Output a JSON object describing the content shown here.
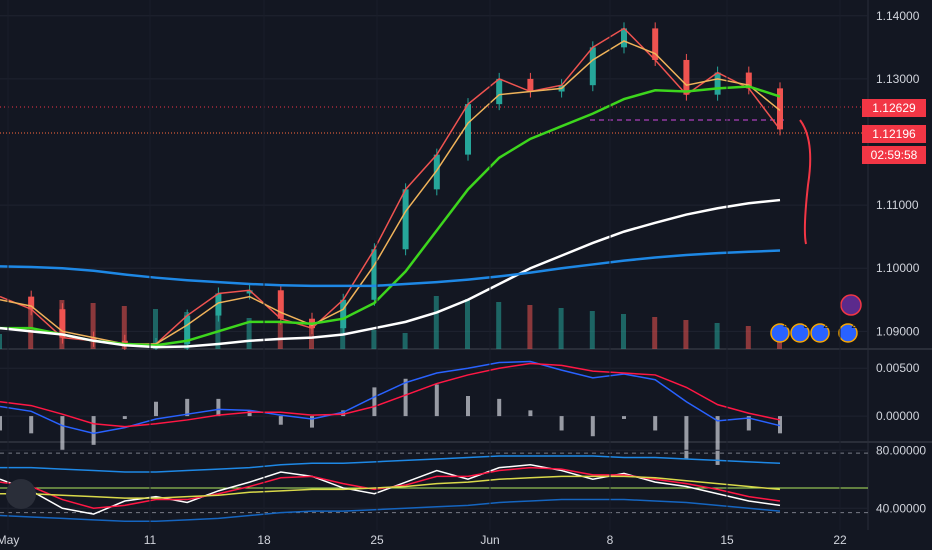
{
  "chart_data": [
    {
      "type": "line",
      "panel": "price",
      "x_ticks": [
        "May",
        "11",
        "18",
        "25",
        "Jun",
        "8",
        "15",
        "22"
      ],
      "y_ticks": [
        "1.14000",
        "1.13000",
        "1.11000",
        "1.10000",
        "1.09000"
      ],
      "price_tags": {
        "current": "1.12629",
        "last": "1.12196",
        "countdown": "02:59:58"
      },
      "ylim": [
        1.0872,
        1.1425
      ],
      "x": [
        0,
        2,
        4,
        6,
        8,
        10,
        12,
        14,
        16,
        18,
        20,
        22,
        24,
        26,
        28,
        30,
        32,
        34,
        36,
        38,
        40,
        42,
        44,
        46,
        48,
        50
      ],
      "series": [
        {
          "color": "#ef5350",
          "values": [
            1.0955,
            1.0935,
            1.089,
            1.0885,
            1.088,
            1.088,
            1.0925,
            1.096,
            1.0965,
            1.092,
            1.0905,
            1.095,
            1.103,
            1.1125,
            1.118,
            1.126,
            1.13,
            1.128,
            1.129,
            1.135,
            1.138,
            1.133,
            1.1275,
            1.131,
            1.1285,
            1.122
          ]
        },
        {
          "color": "#f0b35a",
          "values": [
            1.095,
            1.094,
            1.09,
            1.089,
            1.088,
            1.088,
            1.091,
            1.0945,
            1.0955,
            1.093,
            1.091,
            1.0935,
            1.1005,
            1.109,
            1.1155,
            1.123,
            1.1275,
            1.128,
            1.1285,
            1.133,
            1.136,
            1.134,
            1.129,
            1.13,
            1.129,
            1.125
          ]
        },
        {
          "color": "#3dd61d",
          "values": [
            1.0905,
            1.0905,
            1.0895,
            1.0885,
            1.088,
            1.0878,
            1.0885,
            1.09,
            1.0915,
            1.0915,
            1.0912,
            1.092,
            1.0945,
            1.0995,
            1.106,
            1.1125,
            1.1175,
            1.1205,
            1.1225,
            1.1245,
            1.1268,
            1.1282,
            1.128,
            1.1285,
            1.1288,
            1.1272
          ]
        },
        {
          "color": "#ffffff",
          "values": [
            1.0905,
            1.09,
            1.0895,
            1.0885,
            1.0878,
            1.0875,
            1.0876,
            1.088,
            1.0885,
            1.0888,
            1.089,
            1.0895,
            1.0905,
            1.0915,
            1.093,
            1.095,
            1.0975,
            1.1,
            1.102,
            1.104,
            1.1058,
            1.1072,
            1.1085,
            1.1095,
            1.1103,
            1.1108
          ]
        },
        {
          "color": "#1e88e5",
          "values": [
            1.1003,
            1.1002,
            1.1,
            1.0996,
            1.099,
            1.0985,
            1.0981,
            1.0978,
            1.0975,
            1.0973,
            1.0972,
            1.0972,
            1.0972,
            1.0975,
            1.0978,
            1.0982,
            1.0987,
            1.0993,
            1.1,
            1.1006,
            1.1012,
            1.1017,
            1.1021,
            1.1024,
            1.1026,
            1.1028
          ]
        }
      ]
    },
    {
      "type": "line",
      "panel": "macd",
      "y_ticks": [
        "0.00500",
        "0.00000"
      ],
      "ylim": [
        -0.0026,
        0.0068
      ],
      "x": [
        0,
        2,
        4,
        6,
        8,
        10,
        12,
        14,
        16,
        18,
        20,
        22,
        24,
        26,
        28,
        30,
        32,
        34,
        36,
        38,
        40,
        42,
        44,
        46,
        48,
        50
      ],
      "series": [
        {
          "color": "#2962ff",
          "values": [
            0.001,
            0.0005,
            -0.001,
            -0.0018,
            -0.0012,
            -0.0003,
            0.0002,
            0.0007,
            0.0006,
            0.0001,
            -0.0003,
            0.0004,
            0.002,
            0.0035,
            0.0045,
            0.005,
            0.0056,
            0.0057,
            0.0048,
            0.004,
            0.0044,
            0.0038,
            0.0015,
            -0.0005,
            -0.0002,
            -0.001
          ]
        },
        {
          "color": "#ff1744",
          "values": [
            0.0015,
            0.0011,
            0.0002,
            -0.0008,
            -0.0011,
            -0.0008,
            -0.0004,
            0.0001,
            0.0004,
            0.0004,
            0.0001,
            0.0002,
            0.001,
            0.0022,
            0.0034,
            0.0043,
            0.005,
            0.0055,
            0.0053,
            0.0047,
            0.0045,
            0.0043,
            0.003,
            0.0012,
            0.0003,
            -0.0004
          ]
        }
      ]
    },
    {
      "type": "line",
      "panel": "rsi",
      "y_ticks": [
        "80.00000",
        "40.00000"
      ],
      "ylim": [
        25,
        85
      ],
      "x": [
        0,
        2,
        4,
        6,
        8,
        10,
        12,
        14,
        16,
        18,
        20,
        22,
        24,
        26,
        28,
        30,
        32,
        34,
        36,
        38,
        40,
        42,
        44,
        46,
        48,
        50
      ],
      "series": [
        {
          "color": "#ffffff",
          "values": [
            60,
            52,
            40,
            36,
            45,
            48,
            44,
            52,
            58,
            65,
            62,
            54,
            50,
            58,
            66,
            60,
            68,
            70,
            66,
            60,
            64,
            58,
            55,
            50,
            45,
            42
          ]
        },
        {
          "color": "#ff1744",
          "values": [
            58,
            55,
            46,
            40,
            42,
            46,
            46,
            50,
            55,
            61,
            62,
            57,
            53,
            56,
            62,
            62,
            66,
            68,
            67,
            63,
            63,
            60,
            57,
            53,
            48,
            45
          ]
        },
        {
          "color": "#d9d94a",
          "values": [
            50,
            50,
            49,
            48,
            47,
            47,
            48,
            49,
            51,
            52,
            53,
            53,
            54,
            55,
            57,
            58,
            60,
            61,
            62,
            62,
            62,
            61,
            59,
            57,
            55,
            53
          ]
        },
        {
          "color": "#1e88e5",
          "values": [
            68,
            68,
            67,
            66,
            65,
            65,
            66,
            67,
            68,
            70,
            71,
            71,
            72,
            73,
            74,
            75,
            76,
            76,
            76,
            76,
            75,
            75,
            74,
            73,
            72,
            71
          ]
        },
        {
          "color": "#1565c0",
          "values": [
            35,
            34,
            33,
            32,
            31,
            31,
            32,
            33,
            35,
            37,
            38,
            38,
            39,
            40,
            41,
            42,
            44,
            45,
            46,
            46,
            46,
            45,
            44,
            42,
            40,
            38
          ]
        }
      ]
    }
  ]
}
